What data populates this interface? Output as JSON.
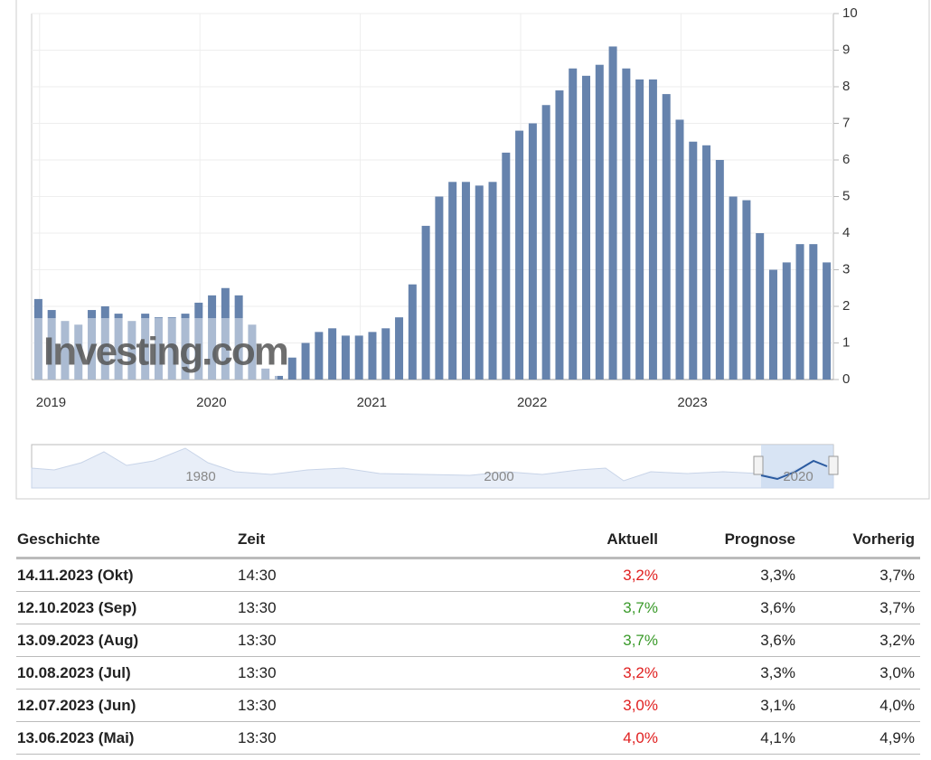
{
  "chart_data": {
    "type": "bar",
    "categories": [
      null,
      "2019",
      null,
      null,
      null,
      null,
      null,
      null,
      null,
      null,
      null,
      null,
      null,
      "2020",
      null,
      null,
      null,
      null,
      null,
      null,
      null,
      null,
      null,
      null,
      null,
      "2021",
      null,
      null,
      null,
      null,
      null,
      null,
      null,
      null,
      null,
      null,
      null,
      "2022",
      null,
      null,
      null,
      null,
      null,
      null,
      null,
      null,
      null,
      null,
      null,
      "2023",
      null,
      null,
      null,
      null,
      null,
      null,
      null,
      null,
      null,
      null
    ],
    "values": [
      2.2,
      1.9,
      1.6,
      1.5,
      1.9,
      2.0,
      1.8,
      1.6,
      1.8,
      1.7,
      1.7,
      1.8,
      2.1,
      2.3,
      2.5,
      2.3,
      1.5,
      0.3,
      0.1,
      0.6,
      1.0,
      1.3,
      1.4,
      1.2,
      1.2,
      1.3,
      1.4,
      1.7,
      2.6,
      4.2,
      5.0,
      5.4,
      5.4,
      5.3,
      5.4,
      6.2,
      6.8,
      7.0,
      7.5,
      7.9,
      8.5,
      8.3,
      8.6,
      9.1,
      8.5,
      8.2,
      8.2,
      7.8,
      7.1,
      6.5,
      6.4,
      6.0,
      5.0,
      4.9,
      4.0,
      3.0,
      3.2,
      3.7,
      3.7,
      3.2
    ],
    "color": "#6683ad",
    "ylim": [
      0,
      10
    ],
    "yticks": [
      0,
      1,
      2,
      3,
      4,
      5,
      6,
      7,
      8,
      9,
      10
    ],
    "grid": true,
    "axis_side": "right",
    "watermark": "Investing.com"
  },
  "navigator_labels": [
    "1980",
    "2000",
    "2020"
  ],
  "table": {
    "headers": [
      "Geschichte",
      "Zeit",
      "Aktuell",
      "Prognose",
      "Vorherig"
    ],
    "rows": [
      {
        "date": "14.11.2023 (Okt)",
        "time": "14:30",
        "actual": "3,2%",
        "actual_color": "#e02020",
        "forecast": "3,3%",
        "previous": "3,7%"
      },
      {
        "date": "12.10.2023 (Sep)",
        "time": "13:30",
        "actual": "3,7%",
        "actual_color": "#3a9a2a",
        "forecast": "3,6%",
        "previous": "3,7%"
      },
      {
        "date": "13.09.2023 (Aug)",
        "time": "13:30",
        "actual": "3,7%",
        "actual_color": "#3a9a2a",
        "forecast": "3,6%",
        "previous": "3,2%"
      },
      {
        "date": "10.08.2023 (Jul)",
        "time": "13:30",
        "actual": "3,2%",
        "actual_color": "#e02020",
        "forecast": "3,3%",
        "previous": "3,0%"
      },
      {
        "date": "12.07.2023 (Jun)",
        "time": "13:30",
        "actual": "3,0%",
        "actual_color": "#e02020",
        "forecast": "3,1%",
        "previous": "4,0%"
      },
      {
        "date": "13.06.2023 (Mai)",
        "time": "13:30",
        "actual": "4,0%",
        "actual_color": "#e02020",
        "forecast": "4,1%",
        "previous": "4,9%"
      }
    ]
  }
}
